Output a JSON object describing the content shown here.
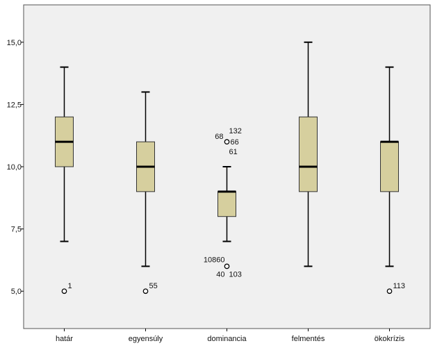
{
  "chart_data": {
    "type": "boxplot",
    "title": "",
    "xlabel": "",
    "ylabel": "",
    "ylim": [
      3.5,
      16.5
    ],
    "y_ticks": [
      5.0,
      7.5,
      10.0,
      12.5,
      15.0
    ],
    "y_tick_labels": [
      "5,0",
      "7,5",
      "10,0",
      "12,5",
      "15,0"
    ],
    "grid": false,
    "colors": {
      "plot_background": "#F0F0F0",
      "box_fill": "#D6CF9E",
      "line": "#000000"
    },
    "categories": [
      "határ",
      "egyensúly",
      "dominancia",
      "felmentés",
      "ökokrízis"
    ],
    "boxes": [
      {
        "category": "határ",
        "whisker_low": 7,
        "q1": 10,
        "median": 11,
        "q3": 12,
        "whisker_high": 14,
        "outliers": [
          {
            "value": 5,
            "labels": [
              "1"
            ]
          }
        ]
      },
      {
        "category": "egyensúly",
        "whisker_low": 6,
        "q1": 9,
        "median": 10,
        "q3": 11,
        "whisker_high": 13,
        "outliers": [
          {
            "value": 5,
            "labels": [
              "55"
            ]
          }
        ]
      },
      {
        "category": "dominancia",
        "whisker_low": 7,
        "q1": 8,
        "median": 9,
        "q3": 9,
        "whisker_high": 10,
        "outliers": [
          {
            "value": 11,
            "labels": [
              "68",
              "132",
              "66",
              "61"
            ]
          },
          {
            "value": 6,
            "labels": [
              "10860",
              "40",
              "103"
            ]
          }
        ]
      },
      {
        "category": "felmentés",
        "whisker_low": 6,
        "q1": 9,
        "median": 10,
        "q3": 12,
        "whisker_high": 15,
        "outliers": []
      },
      {
        "category": "ökokrízis",
        "whisker_low": 6,
        "q1": 9,
        "median": 11,
        "q3": 11,
        "whisker_high": 14,
        "outliers": [
          {
            "value": 5,
            "labels": [
              "113"
            ]
          }
        ]
      }
    ]
  }
}
